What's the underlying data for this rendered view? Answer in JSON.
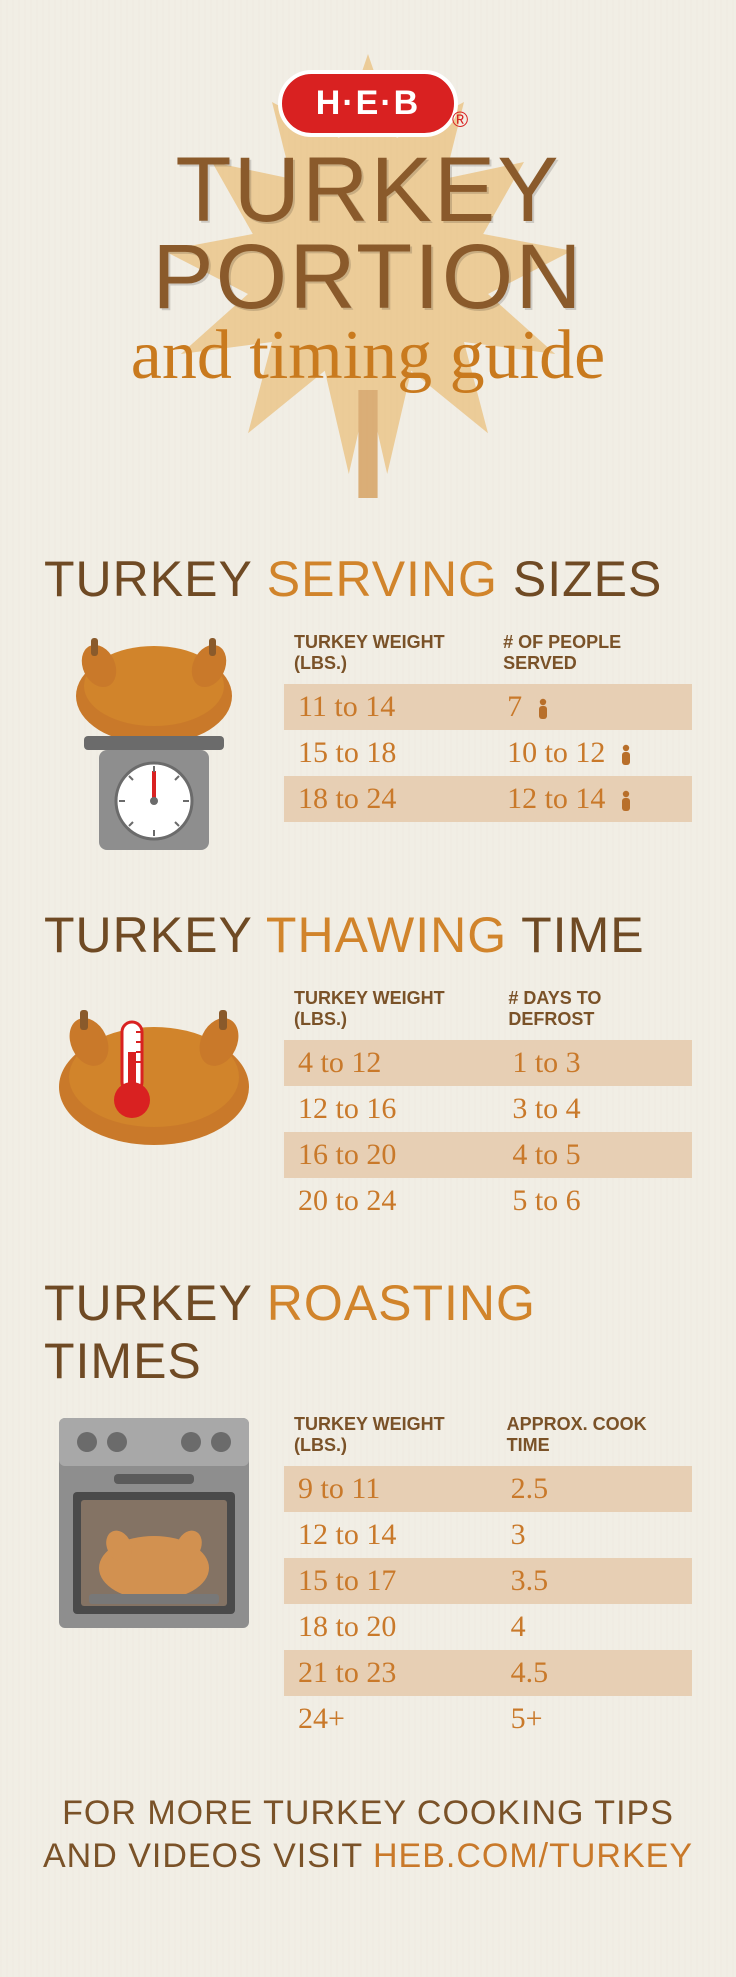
{
  "brand": {
    "logo_text": "H·E·B",
    "logo_bg": "#d92121",
    "logo_text_color": "#ffffff"
  },
  "header": {
    "title_line1": "TURKEY",
    "title_line2": "PORTION",
    "subtitle": "and timing guide",
    "title_color": "#8a5a2b",
    "subtitle_color": "#c97a1e",
    "leaf_color": "#e8b15a"
  },
  "palette": {
    "heading_dark": "#6f4a24",
    "heading_accent": "#d1842b",
    "cell_text": "#c9792a",
    "band_bg": "#e7cfb4",
    "turkey_body": "#c9792a",
    "turkey_dark": "#8a5a2b",
    "scale_gray": "#8e8e8e",
    "oven_gray": "#7f7f7f",
    "oven_dark": "#4a4a4a",
    "thermo_red": "#d92121",
    "person_color": "#b86f2a"
  },
  "sections": {
    "serving": {
      "title_parts": [
        "TURKEY ",
        "SERVING",
        " SIZES"
      ],
      "col1": "Turkey Weight (lbs.)",
      "col2": "# of People Served",
      "rows": [
        {
          "w": "11 to 14",
          "p": "7",
          "band": true
        },
        {
          "w": "15 to 18",
          "p": "10 to 12",
          "band": false
        },
        {
          "w": "18 to 24",
          "p": "12 to 14",
          "band": true
        }
      ]
    },
    "thawing": {
      "title_parts": [
        "TURKEY ",
        "THAWING",
        " TIME"
      ],
      "col1": "Turkey Weight (lbs.)",
      "col2": "# Days to Defrost",
      "rows": [
        {
          "w": "4 to 12",
          "d": "1 to 3",
          "band": true
        },
        {
          "w": "12 to 16",
          "d": "3 to 4",
          "band": false
        },
        {
          "w": "16 to 20",
          "d": "4 to 5",
          "band": true
        },
        {
          "w": "20 to 24",
          "d": "5 to 6",
          "band": false
        }
      ]
    },
    "roasting": {
      "title_parts": [
        "TURKEY ",
        "ROASTING",
        " TIMES"
      ],
      "col1": "Turkey Weight (lbs.)",
      "col2": "Approx. Cook Time",
      "rows": [
        {
          "w": "9 to 11",
          "t": "2.5",
          "band": true
        },
        {
          "w": "12 to 14",
          "t": "3",
          "band": false
        },
        {
          "w": "15 to 17",
          "t": "3.5",
          "band": true
        },
        {
          "w": "18 to 20",
          "t": "4",
          "band": false
        },
        {
          "w": "21 to 23",
          "t": "4.5",
          "band": true
        },
        {
          "w": "24+",
          "t": "5+",
          "band": false
        }
      ]
    }
  },
  "footer": {
    "line1": "FOR MORE TURKEY COOKING TIPS",
    "line2_a": "AND VIDEOS VISIT ",
    "line2_b": "HEB.COM/TURKEY"
  }
}
